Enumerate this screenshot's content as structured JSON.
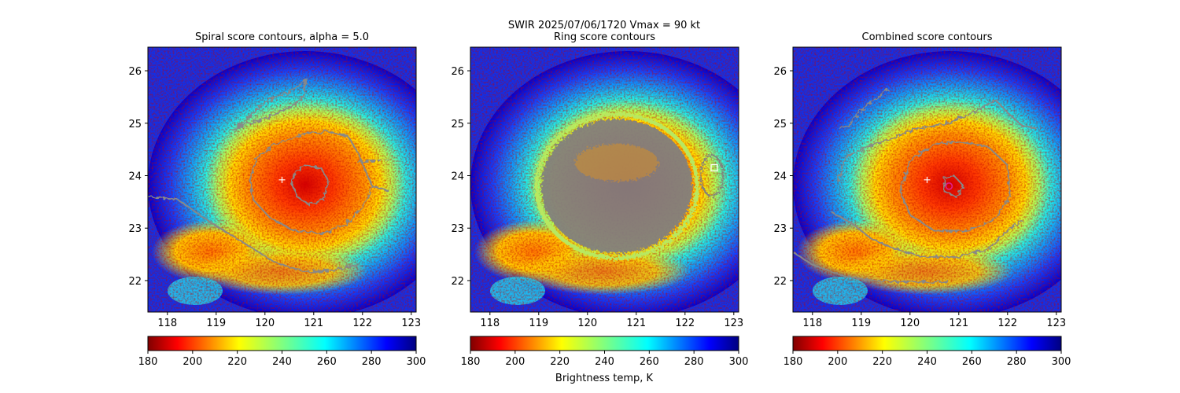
{
  "suptitle_line1": "SWIR  2025/07/06/1720    Vmax = 90 kt",
  "colorbar_label": "Brightness temp, K",
  "chart_data": [
    {
      "type": "heatmap",
      "title": "Spiral score contours, alpha =  5.0",
      "xlim": [
        117.6,
        123.1
      ],
      "ylim": [
        21.4,
        26.45
      ],
      "x_ticks": [
        "118",
        "119",
        "120",
        "121",
        "122",
        "123"
      ],
      "y_ticks": [
        "22",
        "23",
        "24",
        "25",
        "26"
      ],
      "colorbar": {
        "range": [
          180,
          300
        ],
        "ticks": [
          "180",
          "200",
          "220",
          "240",
          "260",
          "280",
          "300"
        ],
        "colormap": "jet_r"
      },
      "center_marker": {
        "symbol": "+",
        "lon": 120.35,
        "lat": 23.92,
        "color": "#ffffff"
      },
      "contours": [
        {
          "color": "#888888",
          "points": [
            [
              119.35,
              24.85
            ],
            [
              119.7,
              25.15
            ],
            [
              120.1,
              25.45
            ],
            [
              120.5,
              25.6
            ],
            [
              120.85,
              25.83
            ],
            [
              120.75,
              25.45
            ],
            [
              120.4,
              25.25
            ],
            [
              119.9,
              25.05
            ],
            [
              119.5,
              24.95
            ],
            [
              119.35,
              24.85
            ]
          ]
        },
        {
          "color": "#888888",
          "points": [
            [
              122.55,
              23.7
            ],
            [
              122.2,
              23.8
            ],
            [
              121.9,
              24.45
            ],
            [
              121.7,
              24.75
            ],
            [
              121.3,
              24.85
            ],
            [
              120.8,
              24.8
            ],
            [
              120.2,
              24.6
            ],
            [
              119.85,
              24.35
            ],
            [
              119.7,
              24.0
            ],
            [
              119.75,
              23.55
            ],
            [
              120.1,
              23.2
            ],
            [
              120.6,
              22.95
            ],
            [
              121.2,
              22.9
            ],
            [
              121.7,
              23.1
            ],
            [
              122.0,
              23.4
            ],
            [
              122.2,
              23.8
            ]
          ]
        },
        {
          "color": "#888888",
          "points": [
            [
              120.6,
              24.05
            ],
            [
              120.85,
              24.2
            ],
            [
              121.15,
              24.15
            ],
            [
              121.3,
              23.9
            ],
            [
              121.2,
              23.55
            ],
            [
              120.9,
              23.45
            ],
            [
              120.65,
              23.6
            ],
            [
              120.55,
              23.85
            ],
            [
              120.6,
              24.05
            ]
          ]
        },
        {
          "color": "#888888",
          "points": [
            [
              117.6,
              23.6
            ],
            [
              118.2,
              23.55
            ],
            [
              118.9,
              23.1
            ],
            [
              119.6,
              22.7
            ],
            [
              120.2,
              22.35
            ],
            [
              120.8,
              22.17
            ],
            [
              121.4,
              22.2
            ],
            [
              121.9,
              22.3
            ]
          ]
        },
        {
          "color": "#888888",
          "points": [
            [
              122.55,
              24.3
            ],
            [
              122.3,
              24.3
            ],
            [
              121.9,
              24.25
            ]
          ]
        }
      ]
    },
    {
      "type": "heatmap",
      "title": "Ring score contours",
      "xlim": [
        117.6,
        123.1
      ],
      "ylim": [
        21.4,
        26.45
      ],
      "x_ticks": [
        "118",
        "119",
        "120",
        "121",
        "122",
        "123"
      ],
      "y_ticks": [
        "22",
        "23",
        "24",
        "25",
        "26"
      ],
      "colorbar": {
        "range": [
          180,
          300
        ],
        "ticks": [
          "180",
          "200",
          "220",
          "240",
          "260",
          "280",
          "300"
        ],
        "colormap": "jet_r"
      },
      "center_marker": {
        "symbol": "square",
        "lon": 122.6,
        "lat": 24.15,
        "color": "#ffffff"
      },
      "ring_blob": {
        "center_lon": 120.6,
        "center_lat": 23.8,
        "radius_lon": 1.55,
        "radius_lat": 1.28,
        "color": "#808080"
      }
    },
    {
      "type": "heatmap",
      "title": "Combined score contours",
      "xlim": [
        117.6,
        123.1
      ],
      "ylim": [
        21.4,
        26.45
      ],
      "x_ticks": [
        "118",
        "119",
        "120",
        "121",
        "122",
        "123"
      ],
      "y_ticks": [
        "22",
        "23",
        "24",
        "25",
        "26"
      ],
      "colorbar": {
        "range": [
          180,
          300
        ],
        "ticks": [
          "180",
          "200",
          "220",
          "240",
          "260",
          "280",
          "300"
        ],
        "colormap": "jet_r"
      },
      "center_marker": {
        "symbol": "+",
        "lon": 120.35,
        "lat": 23.92,
        "color": "#ffffff"
      },
      "secondary_marker": {
        "symbol": "circle",
        "lon": 120.8,
        "lat": 23.8,
        "color": "#e0208a"
      },
      "contours": [
        {
          "color": "#888888",
          "points": [
            [
              118.55,
              24.9
            ],
            [
              118.75,
              24.95
            ],
            [
              119.0,
              25.25
            ],
            [
              119.2,
              25.4
            ],
            [
              119.55,
              25.65
            ]
          ]
        },
        {
          "color": "#888888",
          "points": [
            [
              118.5,
              23.9
            ],
            [
              118.7,
              24.35
            ],
            [
              119.1,
              24.55
            ],
            [
              119.6,
              24.7
            ],
            [
              120.1,
              24.9
            ],
            [
              120.7,
              24.98
            ],
            [
              121.3,
              25.2
            ],
            [
              121.75,
              25.45
            ],
            [
              122.0,
              25.2
            ],
            [
              122.3,
              24.95
            ],
            [
              122.6,
              24.9
            ]
          ]
        },
        {
          "color": "#888888",
          "points": [
            [
              120.0,
              24.3
            ],
            [
              120.5,
              24.6
            ],
            [
              121.0,
              24.65
            ],
            [
              121.6,
              24.55
            ],
            [
              122.0,
              24.2
            ],
            [
              122.05,
              23.6
            ],
            [
              121.7,
              23.15
            ],
            [
              121.2,
              22.95
            ],
            [
              120.5,
              22.95
            ],
            [
              120.0,
              23.25
            ],
            [
              119.8,
              23.7
            ],
            [
              120.0,
              24.3
            ]
          ]
        },
        {
          "color": "#888888",
          "points": [
            [
              120.7,
              23.95
            ],
            [
              120.9,
              24.0
            ],
            [
              121.1,
              23.8
            ],
            [
              120.95,
              23.6
            ],
            [
              120.7,
              23.7
            ],
            [
              120.7,
              23.95
            ]
          ]
        },
        {
          "color": "#888888",
          "points": [
            [
              118.4,
              23.3
            ],
            [
              118.8,
              23.1
            ],
            [
              119.2,
              22.8
            ],
            [
              119.7,
              22.6
            ],
            [
              120.3,
              22.45
            ],
            [
              121.0,
              22.45
            ],
            [
              121.6,
              22.6
            ],
            [
              122.0,
              22.95
            ],
            [
              122.3,
              23.15
            ]
          ]
        },
        {
          "color": "#888888",
          "points": [
            [
              117.6,
              22.55
            ],
            [
              118.0,
              22.3
            ],
            [
              118.6,
              22.1
            ],
            [
              119.2,
              22.0
            ],
            [
              119.9,
              21.98
            ],
            [
              120.4,
              21.97
            ],
            [
              120.8,
              21.98
            ]
          ]
        }
      ]
    }
  ]
}
